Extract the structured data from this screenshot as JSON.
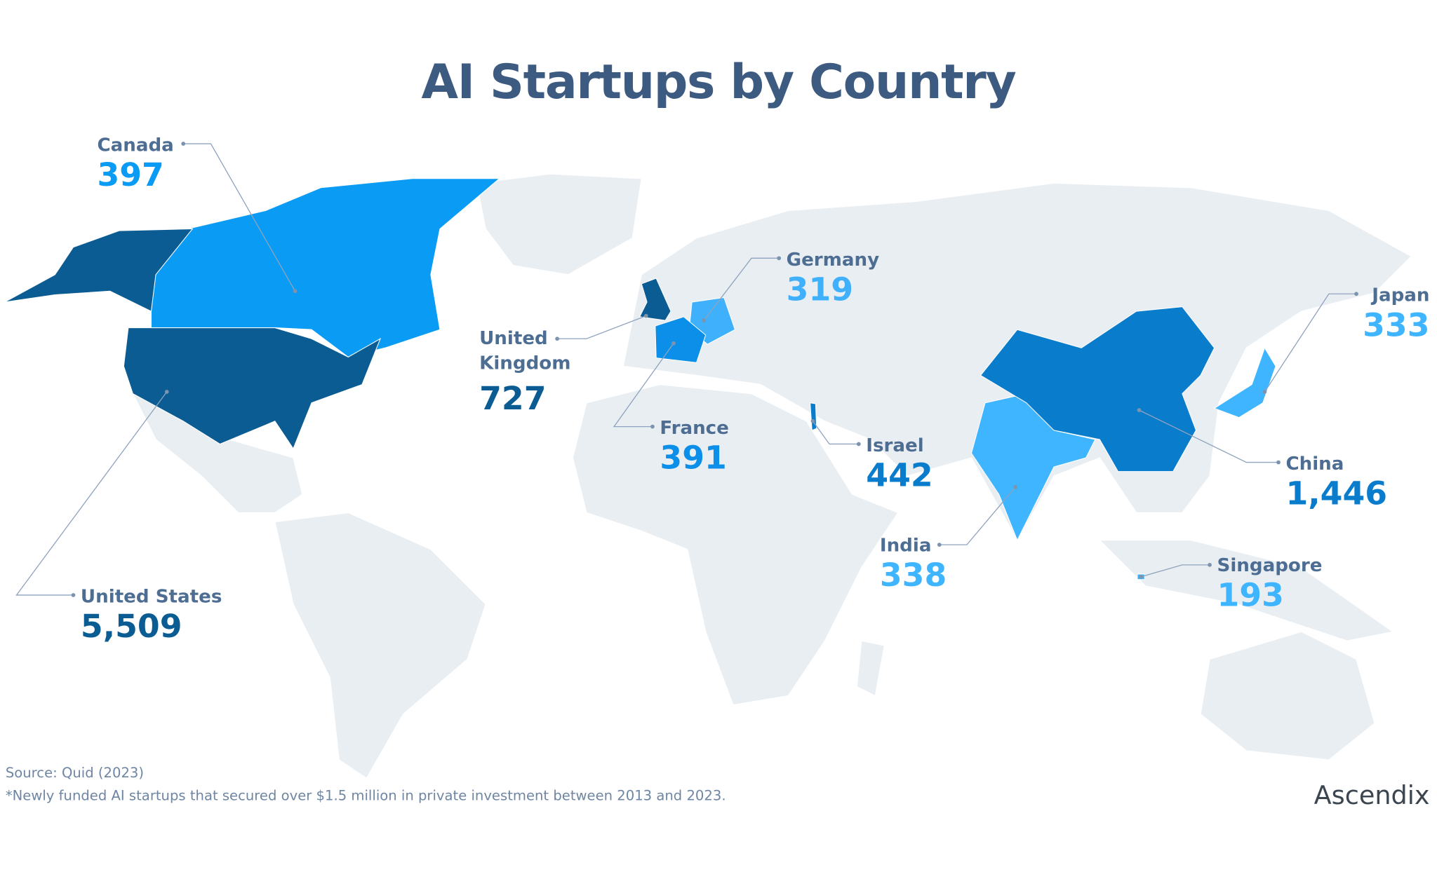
{
  "chart_data": {
    "type": "map",
    "title": "AI Startups by Country",
    "categories": [
      "Canada",
      "United States",
      "United Kingdom",
      "Germany",
      "France",
      "Israel",
      "India",
      "China",
      "Singapore",
      "Japan"
    ],
    "values": [
      397,
      5509,
      727,
      319,
      391,
      442,
      338,
      1446,
      193,
      333
    ],
    "value_labels": [
      "397",
      "5,509",
      "727",
      "319",
      "391",
      "442",
      "338",
      "1,446",
      "193",
      "333"
    ],
    "colors": [
      "#0a9bf5",
      "#0b5c93",
      "#0b5c93",
      "#3fb0fb",
      "#0b8fe8",
      "#0a7ccc",
      "#3fb5ff",
      "#0a7ccc",
      "#3fb5ff",
      "#3fb5ff"
    ],
    "source": "Source:  Quid (2023)",
    "note": "*Newly funded AI startups that secured over $1.5 million in private investment between 2013 and 2023.",
    "brand": "Ascendix"
  }
}
